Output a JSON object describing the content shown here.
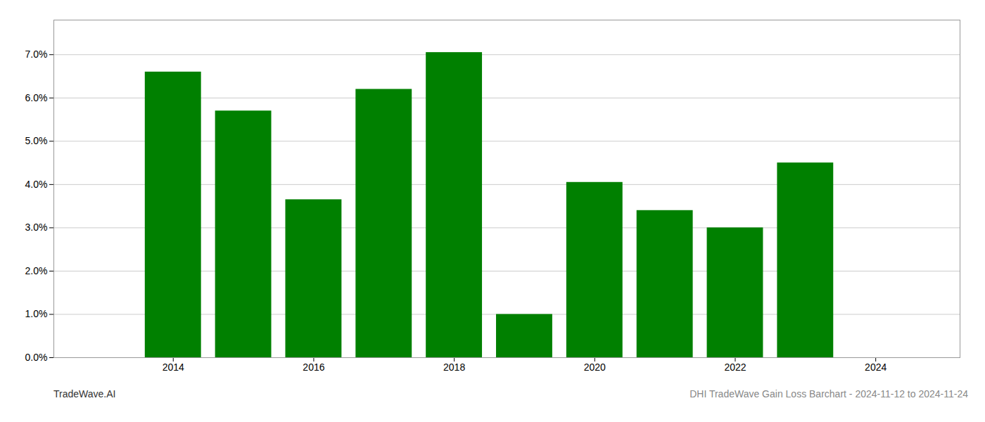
{
  "chart_data": {
    "type": "bar",
    "title": "DHI TradeWave Gain Loss Barchart - 2024-11-12 to 2024-11-24",
    "annotations": [
      "TradeWave.AI"
    ],
    "x": [
      2014,
      2015,
      2016,
      2017,
      2018,
      2019,
      2020,
      2021,
      2022,
      2023
    ],
    "values": [
      0.066,
      0.057,
      0.0365,
      0.062,
      0.0705,
      0.01,
      0.0405,
      0.034,
      0.03,
      0.045
    ],
    "color": "#008000",
    "xlim": [
      2012.3,
      2025.2
    ],
    "xticks": [
      2014,
      2016,
      2018,
      2020,
      2022,
      2024
    ],
    "ylim": [
      0,
      0.078
    ],
    "yticks": [
      {
        "value": 0.0,
        "label": "0.0%"
      },
      {
        "value": 0.01,
        "label": "1.0%"
      },
      {
        "value": 0.02,
        "label": "2.0%"
      },
      {
        "value": 0.03,
        "label": "3.0%"
      },
      {
        "value": 0.04,
        "label": "4.0%"
      },
      {
        "value": 0.05,
        "label": "5.0%"
      },
      {
        "value": 0.06,
        "label": "6.0%"
      },
      {
        "value": 0.07,
        "label": "7.0%"
      }
    ],
    "grid": true
  }
}
